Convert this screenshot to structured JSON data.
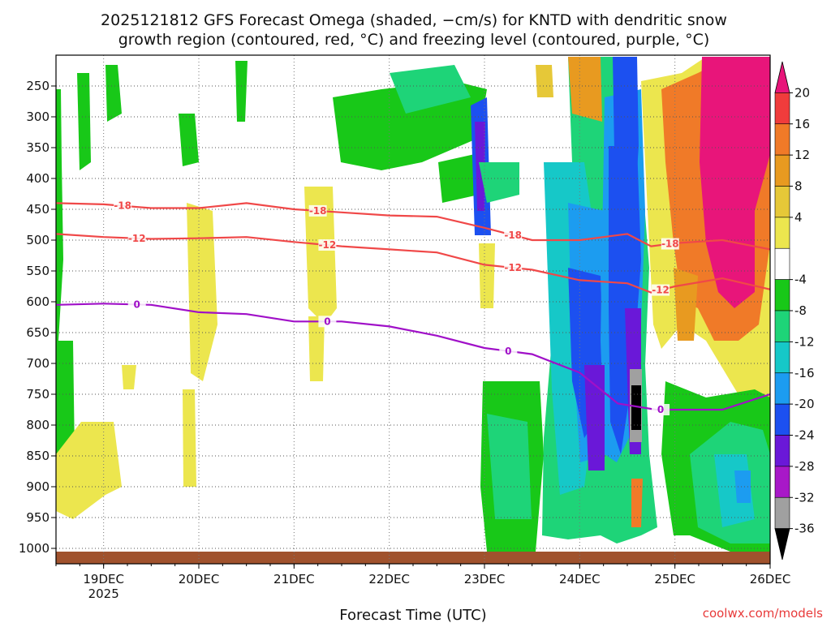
{
  "title_line1": "2025121812 GFS Forecast Omega (shaded, −cm/s) for KNTD with dendritic snow",
  "title_line2": "growth region (contoured, red, °C) and freezing level (contoured, purple, °C)",
  "credit": "coolwx.com/models",
  "chart_data": {
    "type": "heatmap",
    "title": "2025121812 GFS Forecast Omega (shaded, −cm/s) for KNTD with dendritic snow growth region (contoured, red, °C) and freezing level (contoured, purple, °C)",
    "xlabel": "Forecast Time (UTC)",
    "ylabel": "",
    "x_ticks": [
      "19DEC",
      "20DEC",
      "21DEC",
      "22DEC",
      "23DEC",
      "24DEC",
      "25DEC",
      "26DEC"
    ],
    "x_sublabel": "2025",
    "x_range_days": [
      18.5,
      26.0
    ],
    "y_ticks": [
      250,
      300,
      350,
      400,
      450,
      500,
      550,
      600,
      650,
      700,
      750,
      800,
      850,
      900,
      950,
      1000
    ],
    "y_range_hpa": [
      200,
      1025
    ],
    "colorbar_labels": [
      20,
      16,
      12,
      8,
      4,
      -4,
      -8,
      -12,
      -16,
      -20,
      -24,
      -28,
      -32,
      -36
    ],
    "colorbar_colors": [
      "#e8157a",
      "#f03c3c",
      "#f07a28",
      "#e89a20",
      "#e6c838",
      "#ece64e",
      "#ffffff",
      "#18c818",
      "#1ed478",
      "#16c8c8",
      "#1c9cf0",
      "#1c50f0",
      "#6a18d8",
      "#a818c8",
      "#a0a0a0",
      "#000000"
    ],
    "contours": [
      {
        "label": "-18",
        "color": "#f04848",
        "points": [
          [
            18.5,
            440
          ],
          [
            19.0,
            442
          ],
          [
            19.5,
            448
          ],
          [
            20.0,
            448
          ],
          [
            20.5,
            440
          ],
          [
            21.0,
            450
          ],
          [
            21.5,
            455
          ],
          [
            22.0,
            460
          ],
          [
            22.5,
            462
          ],
          [
            23.0,
            480
          ],
          [
            23.5,
            500
          ],
          [
            24.0,
            500
          ],
          [
            24.5,
            490
          ],
          [
            24.75,
            510
          ],
          [
            25.0,
            505
          ],
          [
            25.5,
            500
          ],
          [
            26.0,
            515
          ]
        ],
        "label_days": [
          19.2,
          21.25,
          23.3,
          24.95
        ]
      },
      {
        "label": "-12",
        "color": "#f04848",
        "points": [
          [
            18.5,
            490
          ],
          [
            19.0,
            495
          ],
          [
            19.5,
            498
          ],
          [
            20.0,
            497
          ],
          [
            20.5,
            495
          ],
          [
            21.0,
            503
          ],
          [
            21.5,
            510
          ],
          [
            22.0,
            515
          ],
          [
            22.5,
            520
          ],
          [
            23.0,
            540
          ],
          [
            23.5,
            548
          ],
          [
            24.0,
            565
          ],
          [
            24.5,
            570
          ],
          [
            24.75,
            585
          ],
          [
            25.0,
            575
          ],
          [
            25.5,
            562
          ],
          [
            26.0,
            580
          ]
        ],
        "label_days": [
          19.35,
          21.35,
          23.3,
          24.85
        ]
      },
      {
        "label": "0",
        "color": "#a010c8",
        "points": [
          [
            18.5,
            605
          ],
          [
            19.0,
            603
          ],
          [
            19.5,
            605
          ],
          [
            20.0,
            617
          ],
          [
            20.5,
            620
          ],
          [
            21.0,
            632
          ],
          [
            21.5,
            632
          ],
          [
            22.0,
            640
          ],
          [
            22.5,
            655
          ],
          [
            23.0,
            675
          ],
          [
            23.5,
            685
          ],
          [
            24.0,
            715
          ],
          [
            24.4,
            765
          ],
          [
            24.8,
            775
          ],
          [
            25.0,
            775
          ],
          [
            25.5,
            775
          ],
          [
            26.0,
            750
          ]
        ],
        "label_days": [
          19.35,
          21.35,
          23.25,
          24.85
        ]
      }
    ]
  }
}
